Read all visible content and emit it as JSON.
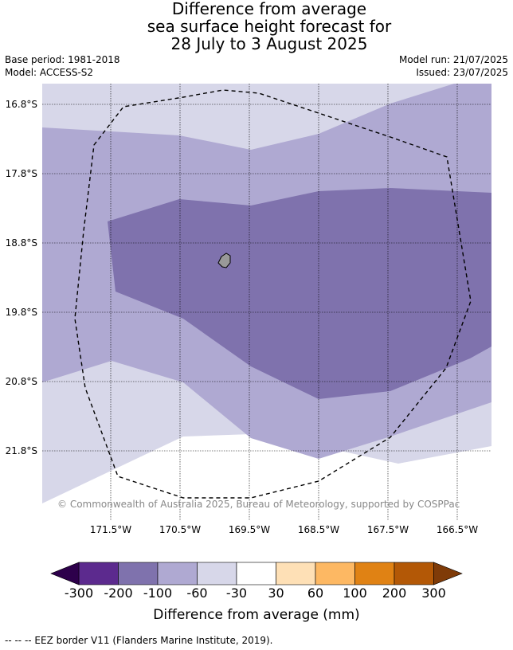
{
  "title": {
    "line1": "Difference from average",
    "line2": "sea surface height forecast for",
    "line3": "28 July to 3 August 2025"
  },
  "meta": {
    "base_period": "Base period: 1981-2018",
    "model": "Model: ACCESS-S2",
    "model_run": "Model run: 21/07/2025",
    "issued": "Issued: 23/07/2025"
  },
  "map": {
    "lat_labels": [
      "16.8°S",
      "17.8°S",
      "18.8°S",
      "19.8°S",
      "20.8°S",
      "21.8°S"
    ],
    "lon_labels": [
      "171.5°W",
      "170.5°W",
      "169.5°W",
      "168.5°W",
      "167.5°W",
      "166.5°W"
    ],
    "copyright": "© Commonwealth of Australia 2025, Bureau of Meteorology, supported by COSPPac",
    "colors": {
      "band_-300_-200": "#5c2a8e",
      "band_-200_-100": "#7f72ad",
      "band_-100_-60": "#afa9d2",
      "band_-60_-30": "#d7d7e9",
      "band_-30_30": "#ffffff",
      "band_30_60": "#fee0b6",
      "band_60_100": "#fdb863",
      "band_100_200": "#e08214",
      "band_200_300": "#b35806",
      "extend_low": "#2d004b",
      "extend_high": "#7f3b08",
      "island": "#999999"
    }
  },
  "colorbar": {
    "ticks": [
      "-300",
      "-200",
      "-100",
      "-60",
      "-30",
      "30",
      "60",
      "100",
      "200",
      "300"
    ],
    "label": "Difference from average (mm)"
  },
  "footnote": "--  --  -- EEZ border V11 (Flanders Marine Institute, 2019)."
}
